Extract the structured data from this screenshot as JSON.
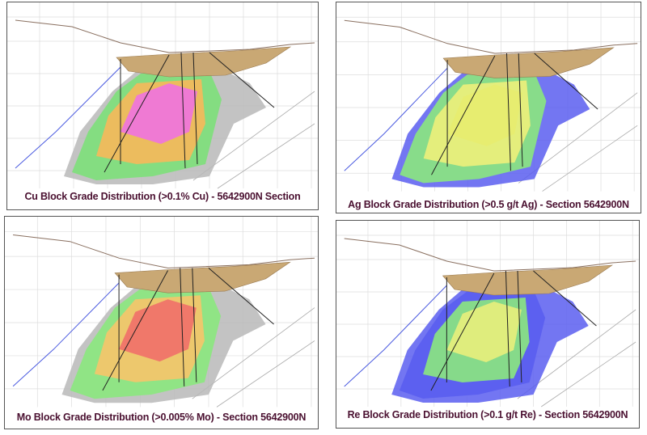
{
  "panels": [
    {
      "caption": "Cu Block Grade Distribution (>0.1% Cu) - 5642900N Section"
    },
    {
      "caption": "Ag Block Grade Distribution (>0.5 g/t Ag) - Section 5642900N"
    },
    {
      "caption": "Mo Block Grade Distribution (>0.005% Mo) - Section 5642900N"
    },
    {
      "caption": "Re Block Grade Distribution (>0.1 g/t Re) - Section 5642900N"
    }
  ]
}
